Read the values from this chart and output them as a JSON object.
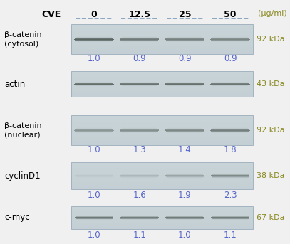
{
  "cve_label": "CVE",
  "concentrations": [
    "0",
    "12.5",
    "25",
    "50"
  ],
  "unit_label": "(μg/ml)",
  "proteins": [
    {
      "name": "β-catenin\n(cytosol)",
      "kda": "92 kDa",
      "values": [
        "1.0",
        "0.9",
        "0.9",
        "0.9"
      ],
      "band_intensities": [
        0.88,
        0.68,
        0.62,
        0.58
      ],
      "show_values": true
    },
    {
      "name": "actin",
      "kda": "43 kDa",
      "values": [],
      "band_intensities": [
        0.8,
        0.75,
        0.77,
        0.73
      ],
      "show_values": false
    },
    {
      "name": "β-catenin\n(nuclear)",
      "kda": "92 kDa",
      "values": [
        "1.0",
        "1.3",
        "1.4",
        "1.8"
      ],
      "band_intensities": [
        0.45,
        0.5,
        0.55,
        0.65
      ],
      "show_values": true
    },
    {
      "name": "cyclinD1",
      "kda": "38 kDa",
      "values": [
        "1.0",
        "1.6",
        "1.9",
        "2.3"
      ],
      "band_intensities": [
        0.08,
        0.22,
        0.38,
        0.65
      ],
      "show_values": true
    },
    {
      "name": "c-myc",
      "kda": "67 kDa",
      "values": [
        "1.0",
        "1.1",
        "1.0",
        "1.1"
      ],
      "band_intensities": [
        0.82,
        0.78,
        0.8,
        0.79
      ],
      "show_values": true
    }
  ],
  "blot_bg": "#c8d4d8",
  "band_color": "#1c2820",
  "value_color": "#5566cc",
  "kda_color": "#888820",
  "label_color": "#000000",
  "header_color": "#000000",
  "line_color": "#7799bb",
  "figure_bg": "#f0f0f0"
}
